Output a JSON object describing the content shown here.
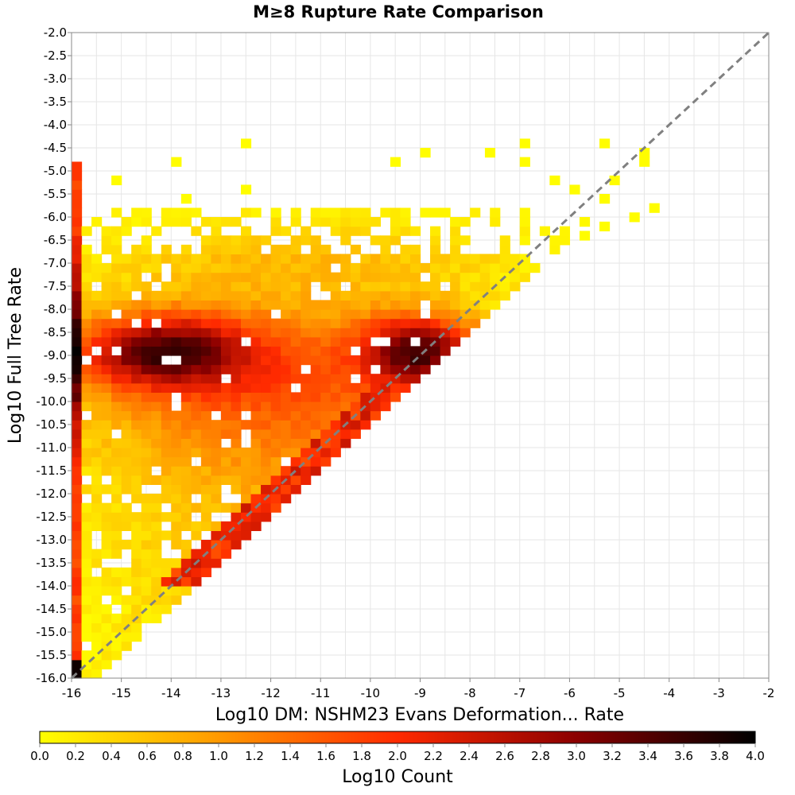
{
  "chart_data": {
    "type": "heatmap",
    "title": "M≥8 Rupture Rate Comparison",
    "xlabel": "Log10 DM: NSHM23 Evans Deformation... Rate",
    "ylabel": "Log10 Full Tree Rate",
    "xlim": [
      -16,
      -2
    ],
    "ylim": [
      -16,
      -2
    ],
    "x_ticks": [
      -16,
      -15,
      -14,
      -13,
      -12,
      -11,
      -10,
      -9,
      -8,
      -7,
      -6,
      -5,
      -4,
      -3,
      -2
    ],
    "y_ticks": [
      -2.0,
      -2.5,
      -3.0,
      -3.5,
      -4.0,
      -4.5,
      -5.0,
      -5.5,
      -6.0,
      -6.5,
      -7.0,
      -7.5,
      -8.0,
      -8.5,
      -9.0,
      -9.5,
      -10.0,
      -10.5,
      -11.0,
      -11.5,
      -12.0,
      -12.5,
      -13.0,
      -13.5,
      -14.0,
      -14.5,
      -15.0,
      -15.5,
      -16.0
    ],
    "x_tick_labels": [
      "-16",
      "-15",
      "-14",
      "-13",
      "-12",
      "-11",
      "-10",
      "-9",
      "-8",
      "-7",
      "-6",
      "-5",
      "-4",
      "-3",
      "-2"
    ],
    "y_tick_labels": [
      "-2.0",
      "-2.5",
      "-3.0",
      "-3.5",
      "-4.0",
      "-4.5",
      "-5.0",
      "-5.5",
      "-6.0",
      "-6.5",
      "-7.0",
      "-7.5",
      "-8.0",
      "-8.5",
      "-9.0",
      "-9.5",
      "-10.0",
      "-10.5",
      "-11.0",
      "-11.5",
      "-12.0",
      "-12.5",
      "-13.0",
      "-13.5",
      "-14.0",
      "-14.5",
      "-15.0",
      "-15.5",
      "-16.0"
    ],
    "grid": true,
    "bin_width": 0.2,
    "reference_line": {
      "from": [
        -16,
        -16
      ],
      "to": [
        -2,
        -2
      ],
      "style": "dashed",
      "color": "#808080"
    },
    "colorbar": {
      "label": "Log10 Count",
      "range": [
        0,
        4
      ],
      "tick_labels": [
        "0.0",
        "0.2",
        "0.4",
        "0.6",
        "0.8",
        "1.0",
        "1.2",
        "1.4",
        "1.6",
        "1.8",
        "2.0",
        "2.2",
        "2.4",
        "2.6",
        "2.8",
        "3.0",
        "3.2",
        "3.4",
        "3.6",
        "3.8",
        "4.0"
      ],
      "colors": [
        "#ffff00",
        "#ff9900",
        "#ff2a00",
        "#8b0000",
        "#000000"
      ]
    },
    "density_components": [
      {
        "x": -14.2,
        "y": -8.9,
        "sx": 1.2,
        "sy": 0.55,
        "peak": 2.6
      },
      {
        "x": -9.0,
        "y": -8.9,
        "sx": 0.8,
        "sy": 0.55,
        "peak": 2.7
      },
      {
        "x": -12.0,
        "y": -9.4,
        "sx": 2.8,
        "sy": 1.3,
        "peak": 1.4
      },
      {
        "x": -11.5,
        "y": -12.6,
        "sx": 3.0,
        "sy": 2.2,
        "peak": 0.7
      },
      {
        "x": -11.0,
        "y": -6.7,
        "sx": 3.4,
        "sy": 0.6,
        "peak": 0.5
      }
    ],
    "edge_column": {
      "x_bin": -16.0,
      "y_range": [
        -16,
        -4.8
      ],
      "value_min": 1.8,
      "value_max": 3.8
    },
    "diagonal_band": {
      "peak": 2.3,
      "y_range": [
        -14,
        -9.4
      ]
    },
    "sparse_upper_bins": [
      [
        -12.6,
        -4.5
      ],
      [
        -14.0,
        -4.9
      ],
      [
        -7.0,
        -4.5
      ],
      [
        -5.4,
        -4.5
      ],
      [
        -9.0,
        -4.7
      ],
      [
        -9.6,
        -4.9
      ],
      [
        -7.7,
        -4.7
      ],
      [
        -7.0,
        -4.9
      ],
      [
        -4.6,
        -4.7
      ],
      [
        -4.6,
        -4.9
      ],
      [
        -15.2,
        -5.3
      ],
      [
        -6.4,
        -5.3
      ],
      [
        -5.2,
        -5.3
      ],
      [
        -6.0,
        -5.5
      ],
      [
        -5.4,
        -5.7
      ],
      [
        -4.4,
        -5.9
      ],
      [
        -4.8,
        -6.1
      ],
      [
        -13.8,
        -5.7
      ],
      [
        -12.6,
        -5.5
      ],
      [
        -5.8,
        -6.5
      ],
      [
        -5.4,
        -6.3
      ]
    ],
    "empty_bins": [
      [
        -11.2,
        -12.0
      ],
      [
        -11.4,
        -12.0
      ],
      [
        -12.2,
        -13.5
      ],
      [
        -13.8,
        -14.6
      ],
      [
        -15.2,
        -14.6
      ],
      [
        -14.6,
        -15.0
      ],
      [
        -15.0,
        -15.3
      ],
      [
        -12.4,
        -15.6
      ],
      [
        -13.4,
        -6.5
      ],
      [
        -12.4,
        -6.3
      ],
      [
        -11.8,
        -5.9
      ],
      [
        -14.6,
        -12.0
      ],
      [
        -12.8,
        -11.3
      ]
    ]
  }
}
